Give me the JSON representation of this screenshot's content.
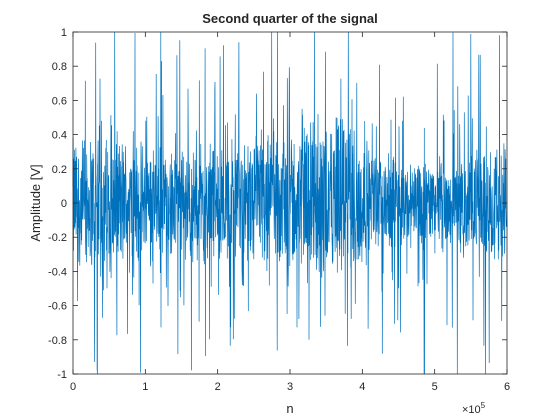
{
  "chart_data": {
    "type": "line",
    "title": "Second quarter of the signal",
    "xlabel": "n",
    "ylabel": "Amplitude [V]",
    "xlim": [
      0,
      600000
    ],
    "ylim": [
      -1,
      1
    ],
    "x_exponent_label": "×10",
    "x_exponent_power": "5",
    "x_ticks": [
      {
        "value": 0,
        "label": "0"
      },
      {
        "value": 100000,
        "label": "1"
      },
      {
        "value": 200000,
        "label": "2"
      },
      {
        "value": 300000,
        "label": "3"
      },
      {
        "value": 400000,
        "label": "4"
      },
      {
        "value": 500000,
        "label": "5"
      },
      {
        "value": 600000,
        "label": "6"
      }
    ],
    "y_ticks": [
      {
        "value": 1,
        "label": "1"
      },
      {
        "value": 0.8,
        "label": "0.8"
      },
      {
        "value": 0.6,
        "label": "0.6"
      },
      {
        "value": 0.4,
        "label": "0.4"
      },
      {
        "value": 0.2,
        "label": "0.2"
      },
      {
        "value": 0,
        "label": "0"
      },
      {
        "value": -0.2,
        "label": "-0.2"
      },
      {
        "value": -0.4,
        "label": "-0.4"
      },
      {
        "value": -0.6,
        "label": "-0.6"
      },
      {
        "value": -0.8,
        "label": "-0.8"
      },
      {
        "value": -1,
        "label": "-1"
      }
    ],
    "grid": false,
    "series": [
      {
        "color": "#0072BD",
        "x_start": 0,
        "x_end": 600000,
        "envelope": [
          {
            "x": 0,
            "amplitude": 0.45
          },
          {
            "x": 60000,
            "amplitude": 0.45
          },
          {
            "x": 130000,
            "amplitude": 0.35
          },
          {
            "x": 200000,
            "amplitude": 0.42
          },
          {
            "x": 270000,
            "amplitude": 0.45
          },
          {
            "x": 330000,
            "amplitude": 0.5
          },
          {
            "x": 380000,
            "amplitude": 0.55
          },
          {
            "x": 420000,
            "amplitude": 0.3
          },
          {
            "x": 500000,
            "amplitude": 0.3
          },
          {
            "x": 560000,
            "amplitude": 0.35
          },
          {
            "x": 600000,
            "amplitude": 0.45
          }
        ],
        "peak_magnitude": 1
      }
    ]
  }
}
